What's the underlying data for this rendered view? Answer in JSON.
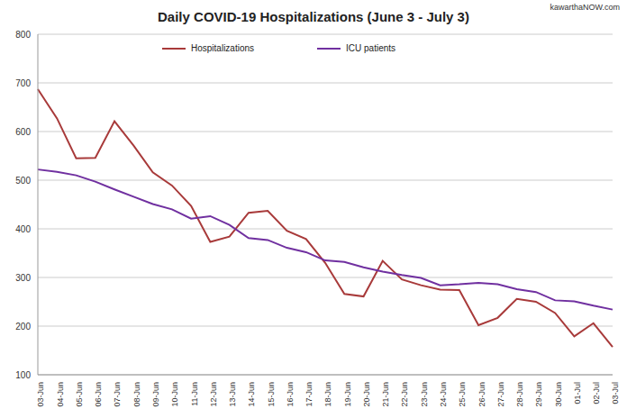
{
  "chart_data": {
    "type": "line",
    "title": "Daily COVID-19 Hospitalizations (June 3 - July 3)",
    "annotations": [
      "kawarthaNOW.com"
    ],
    "x": [
      "03-Jun",
      "04-Jun",
      "05-Jun",
      "06-Jun",
      "07-Jun",
      "08-Jun",
      "09-Jun",
      "10-Jun",
      "11-Jun",
      "12-Jun",
      "13-Jun",
      "14-Jun",
      "15-Jun",
      "16-Jun",
      "17-Jun",
      "18-Jun",
      "19-Jun",
      "20-Jun",
      "21-Jun",
      "22-Jun",
      "23-Jun",
      "24-Jun",
      "25-Jun",
      "26-Jun",
      "27-Jun",
      "28-Jun",
      "29-Jun",
      "30-Jun",
      "01-Jul",
      "02-Jul",
      "03-Jul"
    ],
    "series": [
      {
        "name": "Hospitalizations",
        "color": "#a83a3a",
        "values": [
          687,
          627,
          545,
          546,
          621,
          571,
          516,
          489,
          447,
          373,
          384,
          433,
          437,
          396,
          379,
          330,
          266,
          261,
          334,
          296,
          284,
          275,
          274,
          202,
          217,
          256,
          250,
          227,
          179,
          206,
          157
        ]
      },
      {
        "name": "ICU patients",
        "color": "#7030a0",
        "values": [
          522,
          517,
          510,
          497,
          481,
          466,
          451,
          440,
          421,
          426,
          408,
          381,
          377,
          361,
          352,
          335,
          332,
          321,
          312,
          305,
          299,
          284,
          286,
          289,
          286,
          276,
          270,
          253,
          251,
          242,
          234
        ]
      }
    ],
    "ylim": [
      100,
      800
    ],
    "yticks": [
      100,
      200,
      300,
      400,
      500,
      600,
      700,
      800
    ],
    "grid": true,
    "legend": "top"
  }
}
